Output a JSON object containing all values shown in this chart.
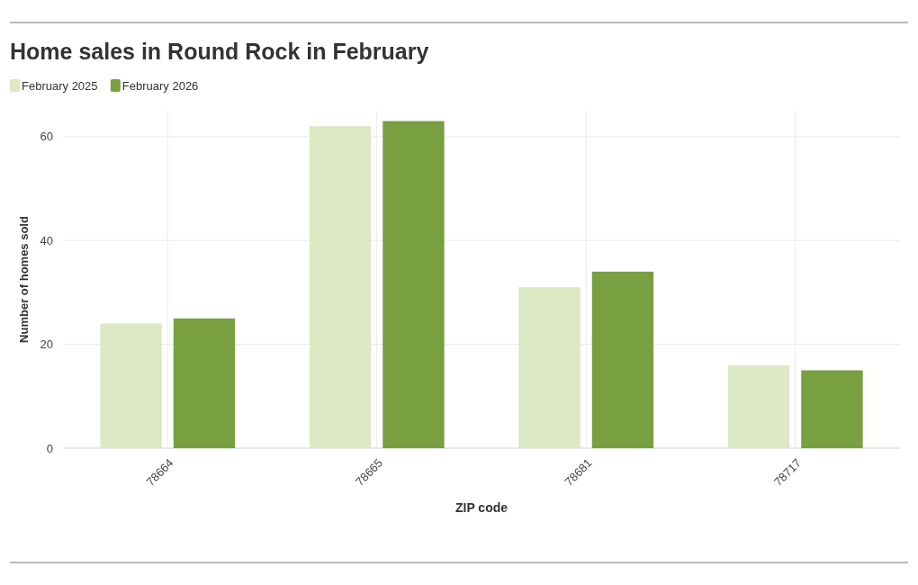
{
  "chart_data": {
    "type": "bar",
    "title": "Home sales in Round Rock in February",
    "xlabel": "ZIP code",
    "ylabel": "Number of homes sold",
    "categories": [
      "78664",
      "78665",
      "78681",
      "78717"
    ],
    "series": [
      {
        "name": "February 2025",
        "color": "#dde8c4",
        "values": [
          24,
          62,
          31,
          16
        ]
      },
      {
        "name": "February 2026",
        "color": "#789f40",
        "values": [
          25,
          63,
          34,
          15
        ]
      }
    ],
    "ylim": [
      0,
      65
    ],
    "yticks": [
      0,
      20,
      40,
      60
    ],
    "grid": true,
    "legend": "top left"
  }
}
